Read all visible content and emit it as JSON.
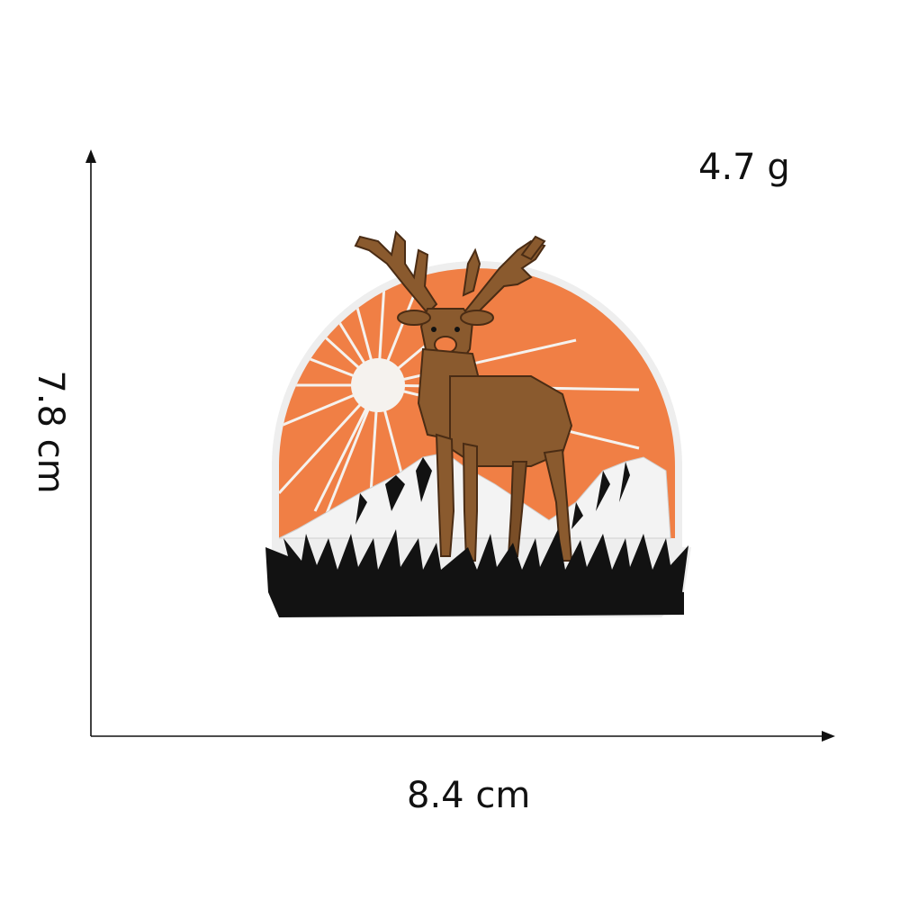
{
  "labels": {
    "weight": "4.7 g",
    "height": "7.8 cm",
    "width": "8.4 cm"
  },
  "colors": {
    "background": "#ffffff",
    "axis": "#111111",
    "sun_orange": "#f07f45",
    "sun_white": "#f5f2ee",
    "deer_brown": "#8a5a2e",
    "deer_dark": "#4a2c14",
    "mountain_white": "#f3f3f3",
    "grass_black": "#121212",
    "patch_border": "#eeeeee"
  },
  "icons": {
    "patch": "deer-patch-icon",
    "axis_arrow": "arrow-icon"
  }
}
